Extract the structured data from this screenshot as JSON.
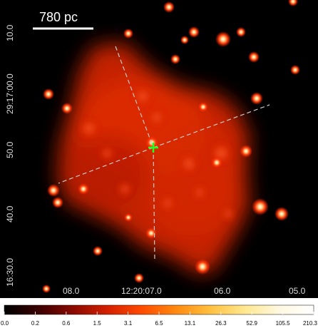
{
  "image": {
    "description_free": true,
    "scale_bar": {
      "label": "780 pc"
    },
    "ra_ticks": [
      "08.0",
      "12:20:07.0",
      "06.0",
      "05.0"
    ],
    "dec_ticks": [
      "10.0",
      "29:17:00.0",
      "50.0",
      "40.0",
      "16:30.0"
    ],
    "colorbar": {
      "ticks": [
        "0.0",
        "0.2",
        "0.6",
        "1.5",
        "3.1",
        "6.5",
        "13.1",
        "26.3",
        "52.9",
        "105.5",
        "210.3"
      ],
      "colormap": [
        "#000000",
        "#3a0000",
        "#8a0a00",
        "#d42000",
        "#ff4a00",
        "#ff8a10",
        "#ffc040",
        "#ffe890",
        "#fff8e0",
        "#ffffff"
      ]
    },
    "marker": {
      "color": "#22ff22",
      "name": "center-cross"
    },
    "colors": {
      "background": "#000000",
      "emission": "#ff3a10",
      "axes_lines": "#c8c8c8"
    }
  }
}
